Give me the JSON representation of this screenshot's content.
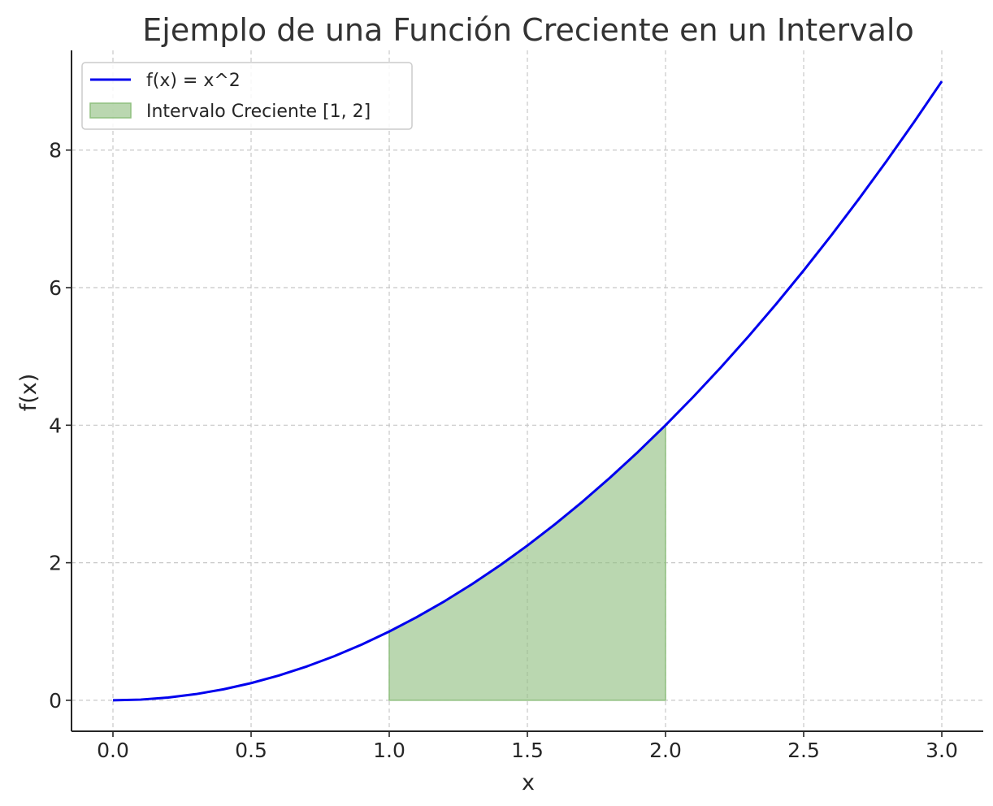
{
  "chart_data": {
    "type": "line",
    "title": "Ejemplo de una Función Creciente en un Intervalo",
    "xlabel": "x",
    "ylabel": "f(x)",
    "xlim": [
      -0.15,
      3.15
    ],
    "ylim": [
      -0.45,
      9.45
    ],
    "x_ticks": [
      0.0,
      0.5,
      1.0,
      1.5,
      2.0,
      2.5,
      3.0
    ],
    "x_tick_labels": [
      "0.0",
      "0.5",
      "1.0",
      "1.5",
      "2.0",
      "2.5",
      "3.0"
    ],
    "y_ticks": [
      0,
      2,
      4,
      6,
      8
    ],
    "y_tick_labels": [
      "0",
      "2",
      "4",
      "6",
      "8"
    ],
    "grid": true,
    "legend_position": "top-left",
    "series": [
      {
        "name": "f(x) = x^2",
        "kind": "line",
        "color": "#0000ee",
        "x": [
          0.0,
          0.1,
          0.2,
          0.3,
          0.4,
          0.5,
          0.6,
          0.7,
          0.8,
          0.9,
          1.0,
          1.1,
          1.2,
          1.3,
          1.4,
          1.5,
          1.6,
          1.7,
          1.8,
          1.9,
          2.0,
          2.1,
          2.2,
          2.3,
          2.4,
          2.5,
          2.6,
          2.7,
          2.8,
          2.9,
          3.0
        ],
        "y": [
          0.0,
          0.01,
          0.04,
          0.09,
          0.16,
          0.25,
          0.36,
          0.49,
          0.64,
          0.81,
          1.0,
          1.21,
          1.44,
          1.69,
          1.96,
          2.25,
          2.56,
          2.89,
          3.24,
          3.61,
          4.0,
          4.41,
          4.84,
          5.29,
          5.76,
          6.25,
          6.76,
          7.29,
          7.84,
          8.41,
          9.0
        ]
      },
      {
        "name": "Intervalo Creciente [1, 2]",
        "kind": "area",
        "color": "#8fbf7f",
        "x": [
          1.0,
          1.1,
          1.2,
          1.3,
          1.4,
          1.5,
          1.6,
          1.7,
          1.8,
          1.9,
          2.0
        ],
        "y": [
          1.0,
          1.21,
          1.44,
          1.69,
          1.96,
          2.25,
          2.56,
          2.89,
          3.24,
          3.61,
          4.0
        ]
      }
    ]
  }
}
